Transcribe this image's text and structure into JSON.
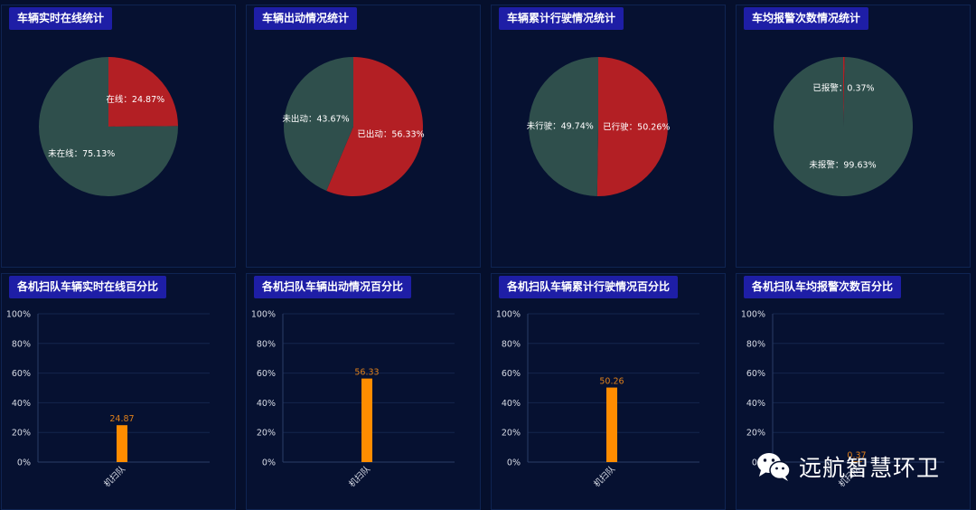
{
  "panels_top": [
    {
      "title": "车辆实时在线统计"
    },
    {
      "title": "车辆出动情况统计"
    },
    {
      "title": "车辆累计行驶情况统计"
    },
    {
      "title": "车均报警次数情况统计"
    }
  ],
  "panels_bottom": [
    {
      "title": "各机扫队车辆实时在线百分比"
    },
    {
      "title": "各机扫队车辆出动情况百分比"
    },
    {
      "title": "各机扫队车辆累计行驶情况百分比"
    },
    {
      "title": "各机扫队车均报警次数百分比"
    }
  ],
  "watermark": {
    "text": "远航智慧环卫",
    "icon": "wechat-icon"
  },
  "colors": {
    "red": "#b31f24",
    "green": "#2f4f4c",
    "bar": "#ff8c00",
    "label_orange": "#e0801a"
  },
  "chart_data": [
    {
      "type": "pie",
      "title": "车辆实时在线统计",
      "slices": [
        {
          "label": "在线：24.87%",
          "value": 24.87,
          "color": "#b31f24"
        },
        {
          "label": "未在线：75.13%",
          "value": 75.13,
          "color": "#2f4f4c"
        }
      ]
    },
    {
      "type": "pie",
      "title": "车辆出动情况统计",
      "slices": [
        {
          "label": "已出动：56.33%",
          "value": 56.33,
          "color": "#b31f24"
        },
        {
          "label": "未出动：43.67%",
          "value": 43.67,
          "color": "#2f4f4c"
        }
      ]
    },
    {
      "type": "pie",
      "title": "车辆累计行驶情况统计",
      "slices": [
        {
          "label": "已行驶：50.26%",
          "value": 50.26,
          "color": "#b31f24"
        },
        {
          "label": "未行驶：49.74%",
          "value": 49.74,
          "color": "#2f4f4c"
        }
      ]
    },
    {
      "type": "pie",
      "title": "车均报警次数情况统计",
      "slices": [
        {
          "label": "已报警：0.37%",
          "value": 0.37,
          "color": "#b31f24"
        },
        {
          "label": "未报警：99.63%",
          "value": 99.63,
          "color": "#2f4f4c"
        }
      ]
    },
    {
      "type": "bar",
      "title": "各机扫队车辆实时在线百分比",
      "categories": [
        "机扫队"
      ],
      "values": [
        24.87
      ],
      "value_labels": [
        "24.87"
      ],
      "yticks": [
        "0%",
        "20%",
        "40%",
        "60%",
        "80%",
        "100%"
      ],
      "ylim": [
        0,
        100
      ]
    },
    {
      "type": "bar",
      "title": "各机扫队车辆出动情况百分比",
      "categories": [
        "机扫队"
      ],
      "values": [
        56.33
      ],
      "value_labels": [
        "56.33"
      ],
      "yticks": [
        "0%",
        "20%",
        "40%",
        "60%",
        "80%",
        "100%"
      ],
      "ylim": [
        0,
        100
      ]
    },
    {
      "type": "bar",
      "title": "各机扫队车辆累计行驶情况百分比",
      "categories": [
        "机扫队"
      ],
      "values": [
        50.26
      ],
      "value_labels": [
        "50.26"
      ],
      "yticks": [
        "0%",
        "20%",
        "40%",
        "60%",
        "80%",
        "100%"
      ],
      "ylim": [
        0,
        100
      ]
    },
    {
      "type": "bar",
      "title": "各机扫队车均报警次数百分比",
      "categories": [
        "机扫队"
      ],
      "values": [
        0.37
      ],
      "value_labels": [
        "0.37"
      ],
      "yticks": [
        "0%",
        "20%",
        "40%",
        "60%",
        "80%",
        "100%"
      ],
      "ylim": [
        0,
        100
      ]
    }
  ]
}
